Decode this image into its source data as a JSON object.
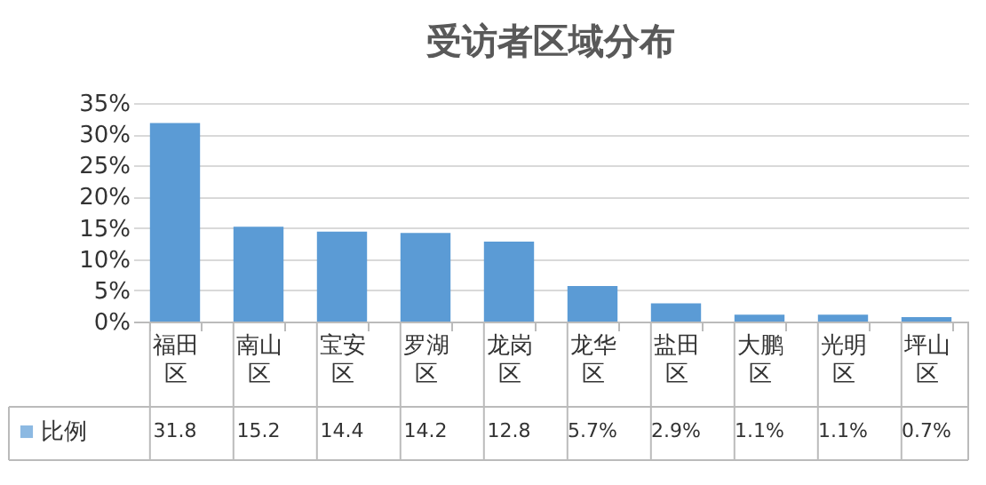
{
  "chart_data": {
    "type": "bar",
    "title": "受访者区域分布",
    "categories": [
      "福田区",
      "南山区",
      "宝安区",
      "罗湖区",
      "龙岗区",
      "龙华区",
      "盐田区",
      "大鹏区",
      "光明区",
      "坪山区"
    ],
    "series": [
      {
        "name": "比例",
        "color": "#5b9bd5",
        "values": [
          31.8,
          15.2,
          14.4,
          14.2,
          12.8,
          5.7,
          2.9,
          1.1,
          1.1,
          0.7
        ],
        "value_labels": [
          "31.8",
          "15.2",
          "14.4",
          "14.2",
          "12.8",
          "5.7%",
          "2.9%",
          "1.1%",
          "1.1%",
          "0.7%"
        ]
      }
    ],
    "ylim": [
      0,
      35
    ],
    "yticks": [
      {
        "value": 0,
        "label": "0%"
      },
      {
        "value": 5,
        "label": "5%"
      },
      {
        "value": 10,
        "label": "10%"
      },
      {
        "value": 15,
        "label": "15%"
      },
      {
        "value": 20,
        "label": "20%"
      },
      {
        "value": 25,
        "label": "25%"
      },
      {
        "value": 30,
        "label": "30%"
      },
      {
        "value": 35,
        "label": "35%"
      }
    ],
    "grid": "y",
    "legend": "bottom"
  }
}
